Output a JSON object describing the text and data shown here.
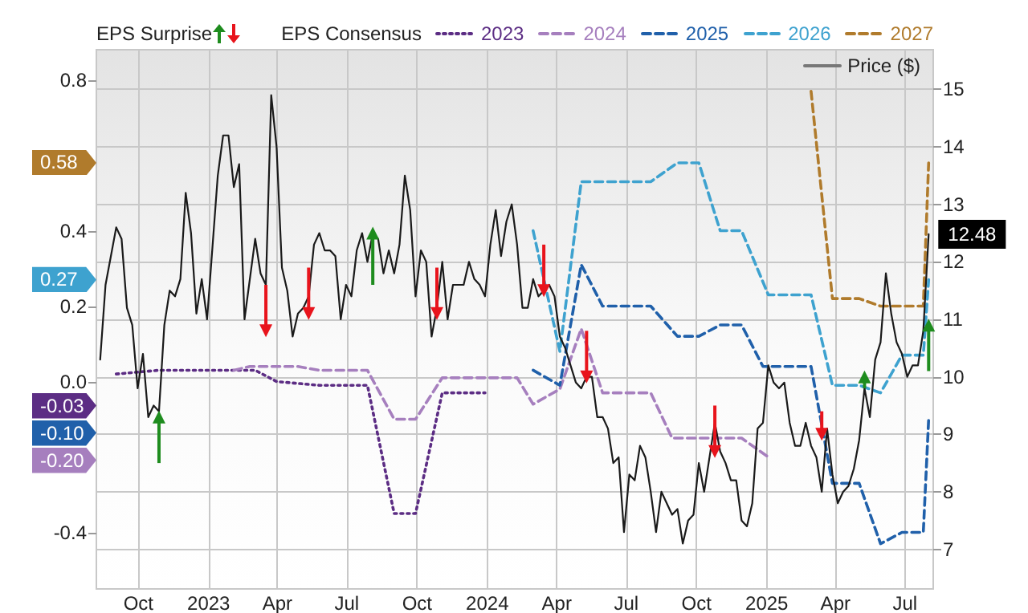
{
  "chart_data": {
    "type": "line",
    "annotations": [
      "EPS Surprise",
      "EPS Consensus",
      "0.58",
      "0.27",
      "-0.03",
      "-0.10",
      "-0.20"
    ],
    "xlim": [
      "2022-08-07",
      "2025-08-07"
    ],
    "xticks": [
      {
        "value": "2022-10-01",
        "label": "Oct"
      },
      {
        "value": "2023-01-01",
        "label": "2023"
      },
      {
        "value": "2023-04-01",
        "label": "Apr"
      },
      {
        "value": "2023-07-01",
        "label": "Jul"
      },
      {
        "value": "2023-10-01",
        "label": "Oct"
      },
      {
        "value": "2024-01-01",
        "label": "2024"
      },
      {
        "value": "2024-04-01",
        "label": "Apr"
      },
      {
        "value": "2024-07-01",
        "label": "Jul"
      },
      {
        "value": "2024-10-01",
        "label": "Oct"
      },
      {
        "value": "2025-01-01",
        "label": "2025"
      },
      {
        "value": "2025-04-01",
        "label": "Apr"
      },
      {
        "value": "2025-07-01",
        "label": "Jul"
      }
    ],
    "ylim": [
      -0.55,
      0.88
    ],
    "yticks": [
      -0.4,
      {
        "value": 0,
        "label": "0.0"
      },
      0.2,
      0.4,
      0.8
    ],
    "y2lim": [
      6.31,
      15.69
    ],
    "y2ticks": [
      7,
      8,
      9,
      10,
      11,
      12,
      13,
      14,
      15
    ],
    "grid": true,
    "legend": "top",
    "series": [
      {
        "type": "scatter",
        "marker": "triangle",
        "color": "#1e8c1e",
        "axis": "y2",
        "x": [
          "2022-10-28",
          "2023-08-04",
          "2025-05-09",
          "2025-08-01"
        ],
        "values": [
          9.3,
          12.5,
          10.0,
          10.9
        ],
        "errors": [
          [
            8.5,
            9.3
          ],
          [
            11.6,
            12.5
          ],
          [
            9.8,
            10.0
          ],
          [
            10.1,
            10.9
          ]
        ]
      },
      {
        "type": "scatter",
        "marker": "triangle",
        "color": "#e8141c",
        "axis": "y2",
        "x": [
          "2023-03-17",
          "2023-05-12",
          "2023-10-27",
          "2024-03-15",
          "2024-05-10",
          "2024-10-25",
          "2025-03-14"
        ],
        "values": [
          10.8,
          11.1,
          11.1,
          11.5,
          10.0,
          8.7,
          9.0
        ],
        "errors": [
          [
            10.8,
            11.6
          ],
          [
            11.1,
            11.9
          ],
          [
            11.1,
            11.9
          ],
          [
            11.5,
            12.3
          ],
          [
            10.0,
            10.8
          ],
          [
            8.7,
            9.5
          ],
          [
            9.0,
            9.4
          ]
        ]
      },
      {
        "name": "2023",
        "marker": "none",
        "color": "#5c2d84",
        "line_style": "dotted",
        "x": [
          "2022-09-02",
          "2022-10-28",
          "2023-03-03",
          "2023-03-31",
          "2023-05-26",
          "2023-07-28",
          "2023-09-01",
          "2023-09-29",
          "2023-11-03",
          "2023-12-29"
        ],
        "values": [
          0.02,
          0.03,
          0.03,
          0.0,
          -0.01,
          -0.01,
          -0.35,
          -0.35,
          -0.03,
          -0.03
        ]
      },
      {
        "name": "2024",
        "marker": "none",
        "color": "#a67fbe",
        "line_style": "dashed",
        "x": [
          "2023-02-03",
          "2023-02-24",
          "2023-04-28",
          "2023-05-26",
          "2023-07-28",
          "2023-09-01",
          "2023-09-29",
          "2023-11-03",
          "2024-02-09",
          "2024-03-01",
          "2024-04-05",
          "2024-05-03",
          "2024-05-31",
          "2024-08-02",
          "2024-08-30",
          "2024-11-29",
          "2025-01-03"
        ],
        "values": [
          0.03,
          0.04,
          0.04,
          0.03,
          0.03,
          -0.1,
          -0.1,
          0.01,
          0.01,
          -0.06,
          -0.02,
          0.14,
          -0.03,
          -0.03,
          -0.15,
          -0.15,
          -0.2
        ]
      },
      {
        "name": "2025",
        "marker": "none",
        "color": "#2060aa",
        "line_style": "dashed",
        "x": [
          "2024-03-01",
          "2024-04-05",
          "2024-05-03",
          "2024-05-31",
          "2024-08-02",
          "2024-09-06",
          "2024-10-04",
          "2024-11-01",
          "2024-11-29",
          "2024-12-27",
          "2025-02-28",
          "2025-03-28",
          "2025-05-02",
          "2025-05-30",
          "2025-06-27",
          "2025-07-25",
          "2025-08-01"
        ],
        "values": [
          0.03,
          -0.01,
          0.31,
          0.2,
          0.2,
          0.12,
          0.12,
          0.15,
          0.15,
          0.04,
          0.04,
          -0.27,
          -0.27,
          -0.43,
          -0.4,
          -0.4,
          -0.1
        ]
      },
      {
        "name": "2026",
        "marker": "none",
        "color": "#3ea2cf",
        "line_style": "dashed",
        "x": [
          "2024-03-01",
          "2024-04-05",
          "2024-05-03",
          "2024-08-02",
          "2024-09-06",
          "2024-10-04",
          "2024-11-01",
          "2024-11-29",
          "2025-01-03",
          "2025-02-28",
          "2025-03-28",
          "2025-05-02",
          "2025-05-30",
          "2025-06-27",
          "2025-07-25",
          "2025-08-01"
        ],
        "values": [
          0.4,
          0.08,
          0.53,
          0.53,
          0.58,
          0.58,
          0.4,
          0.4,
          0.23,
          0.23,
          -0.01,
          -0.01,
          -0.03,
          0.07,
          0.07,
          0.27
        ]
      },
      {
        "name": "2027",
        "marker": "none",
        "color": "#b07b2c",
        "line_style": "dashed",
        "x": [
          "2025-02-28",
          "2025-03-28",
          "2025-05-02",
          "2025-05-30",
          "2025-07-25",
          "2025-08-01"
        ],
        "values": [
          0.77,
          0.22,
          0.22,
          0.2,
          0.2,
          0.58
        ]
      },
      {
        "name": "Price ($)",
        "marker": "none",
        "color": "#1a1a1a",
        "line_style": "solid",
        "axis": "y2",
        "x": [
          "2022-08-12",
          "2022-08-19",
          "2022-08-26",
          "2022-09-02",
          "2022-09-09",
          "2022-09-16",
          "2022-09-23",
          "2022-09-30",
          "2022-10-07",
          "2022-10-14",
          "2022-10-21",
          "2022-10-28",
          "2022-11-04",
          "2022-11-11",
          "2022-11-18",
          "2022-11-25",
          "2022-12-02",
          "2022-12-09",
          "2022-12-16",
          "2022-12-23",
          "2022-12-30",
          "2023-01-13",
          "2023-01-20",
          "2023-01-27",
          "2023-02-03",
          "2023-02-10",
          "2023-02-17",
          "2023-03-03",
          "2023-03-10",
          "2023-03-17",
          "2023-03-24",
          "2023-03-31",
          "2023-04-07",
          "2023-04-14",
          "2023-04-21",
          "2023-04-28",
          "2023-05-05",
          "2023-05-12",
          "2023-05-19",
          "2023-05-26",
          "2023-06-02",
          "2023-06-09",
          "2023-06-16",
          "2023-06-23",
          "2023-06-30",
          "2023-07-07",
          "2023-07-14",
          "2023-07-21",
          "2023-07-28",
          "2023-08-04",
          "2023-08-11",
          "2023-08-18",
          "2023-08-25",
          "2023-09-01",
          "2023-09-08",
          "2023-09-15",
          "2023-09-22",
          "2023-09-29",
          "2023-10-06",
          "2023-10-13",
          "2023-10-20",
          "2023-10-27",
          "2023-11-03",
          "2023-11-10",
          "2023-11-17",
          "2023-11-24",
          "2023-12-01",
          "2023-12-08",
          "2023-12-15",
          "2023-12-22",
          "2023-12-29",
          "2024-01-05",
          "2024-01-12",
          "2024-01-19",
          "2024-01-26",
          "2024-02-02",
          "2024-02-09",
          "2024-02-16",
          "2024-02-23",
          "2024-03-01",
          "2024-03-08",
          "2024-03-15",
          "2024-03-22",
          "2024-03-29",
          "2024-04-05",
          "2024-04-12",
          "2024-04-19",
          "2024-04-26",
          "2024-05-03",
          "2024-05-10",
          "2024-05-17",
          "2024-05-24",
          "2024-05-31",
          "2024-06-07",
          "2024-06-14",
          "2024-06-21",
          "2024-06-28",
          "2024-07-05",
          "2024-07-12",
          "2024-07-19",
          "2024-07-26",
          "2024-08-02",
          "2024-08-09",
          "2024-08-16",
          "2024-08-23",
          "2024-08-30",
          "2024-09-06",
          "2024-09-13",
          "2024-09-20",
          "2024-09-27",
          "2024-10-04",
          "2024-10-11",
          "2024-10-18",
          "2024-10-25",
          "2024-11-01",
          "2024-11-08",
          "2024-11-15",
          "2024-11-22",
          "2024-11-29",
          "2024-12-06",
          "2024-12-13",
          "2024-12-20",
          "2024-12-27",
          "2025-01-03",
          "2025-01-10",
          "2025-01-17",
          "2025-01-24",
          "2025-01-31",
          "2025-02-07",
          "2025-02-14",
          "2025-02-21",
          "2025-02-28",
          "2025-03-07",
          "2025-03-14",
          "2025-03-21",
          "2025-03-28",
          "2025-04-04",
          "2025-04-11",
          "2025-04-18",
          "2025-04-25",
          "2025-05-02",
          "2025-05-09",
          "2025-05-16",
          "2025-05-23",
          "2025-05-30",
          "2025-06-06",
          "2025-06-13",
          "2025-06-20",
          "2025-06-27",
          "2025-07-04",
          "2025-07-11",
          "2025-07-18",
          "2025-07-25",
          "2025-08-01"
        ],
        "values": [
          10.3,
          11.6,
          12.1,
          12.6,
          12.4,
          11.2,
          10.9,
          9.8,
          10.4,
          9.3,
          9.5,
          9.4,
          10.9,
          11.5,
          11.4,
          11.7,
          13.2,
          12.5,
          11.1,
          11.7,
          11.0,
          13.5,
          14.2,
          14.2,
          13.3,
          13.7,
          11.0,
          12.4,
          11.8,
          11.6,
          14.9,
          14.0,
          11.9,
          11.5,
          10.7,
          11.1,
          11.2,
          11.4,
          12.3,
          12.5,
          12.2,
          12.2,
          12.1,
          11.0,
          11.6,
          11.4,
          12.2,
          12.5,
          12.0,
          12.5,
          12.4,
          11.8,
          12.2,
          11.8,
          12.3,
          13.5,
          12.9,
          11.4,
          12.2,
          12.0,
          10.7,
          11.2,
          12.0,
          11.0,
          11.6,
          11.6,
          11.6,
          12.0,
          11.7,
          11.6,
          11.4,
          12.3,
          12.9,
          12.1,
          12.7,
          13.0,
          12.3,
          11.2,
          11.2,
          11.7,
          11.4,
          11.5,
          11.6,
          11.4,
          10.7,
          10.5,
          10.2,
          9.9,
          9.8,
          10.0,
          10.0,
          9.3,
          9.3,
          9.1,
          8.5,
          8.6,
          7.3,
          8.3,
          8.2,
          8.8,
          8.6,
          8.0,
          7.3,
          8.0,
          7.8,
          7.6,
          7.7,
          7.1,
          7.5,
          7.6,
          8.5,
          8.0,
          8.6,
          9.2,
          8.7,
          8.5,
          8.2,
          8.2,
          7.5,
          7.4,
          7.8,
          9.1,
          9.2,
          10.2,
          9.9,
          9.8,
          9.9,
          9.2,
          8.8,
          8.8,
          9.2,
          8.8,
          8.6,
          8.0,
          9.1,
          8.3,
          7.8,
          8.0,
          8.1,
          8.4,
          8.9,
          9.8,
          9.3,
          10.3,
          10.6,
          11.8,
          11.1,
          10.6,
          10.4,
          10.0,
          10.2,
          10.2,
          10.8,
          12.48
        ],
        "value_labels": [
          null,
          null,
          null,
          null,
          null,
          null,
          null,
          null,
          null,
          null,
          null,
          null,
          null,
          null,
          null,
          null,
          null,
          null,
          null,
          null,
          null,
          null,
          null,
          null,
          null,
          null,
          null,
          null,
          null,
          null,
          null,
          null,
          null,
          null,
          null,
          null,
          null,
          null,
          null,
          null,
          null,
          null,
          null,
          null,
          null,
          null,
          null,
          null,
          null,
          null,
          null,
          null,
          null,
          null,
          null,
          null,
          null,
          null,
          null,
          null,
          null,
          null,
          null,
          null,
          null,
          null,
          null,
          null,
          null,
          null,
          null,
          null,
          null,
          null,
          null,
          null,
          null,
          null,
          null,
          null,
          null,
          null,
          null,
          null,
          null,
          null,
          null,
          null,
          null,
          null,
          null,
          null,
          null,
          null,
          null,
          null,
          null,
          null,
          null,
          null,
          null,
          null,
          null,
          null,
          null,
          null,
          null,
          null,
          null,
          null,
          null,
          null,
          null,
          null,
          null,
          null,
          null,
          null,
          null,
          null,
          null,
          null,
          null,
          null,
          null,
          null,
          null,
          null,
          null,
          null,
          null,
          null,
          null,
          null,
          null,
          null,
          null,
          null,
          null,
          null,
          null,
          null,
          null,
          null,
          null,
          null,
          null,
          null,
          null,
          null,
          null,
          null,
          null,
          "12.48"
        ]
      }
    ]
  }
}
